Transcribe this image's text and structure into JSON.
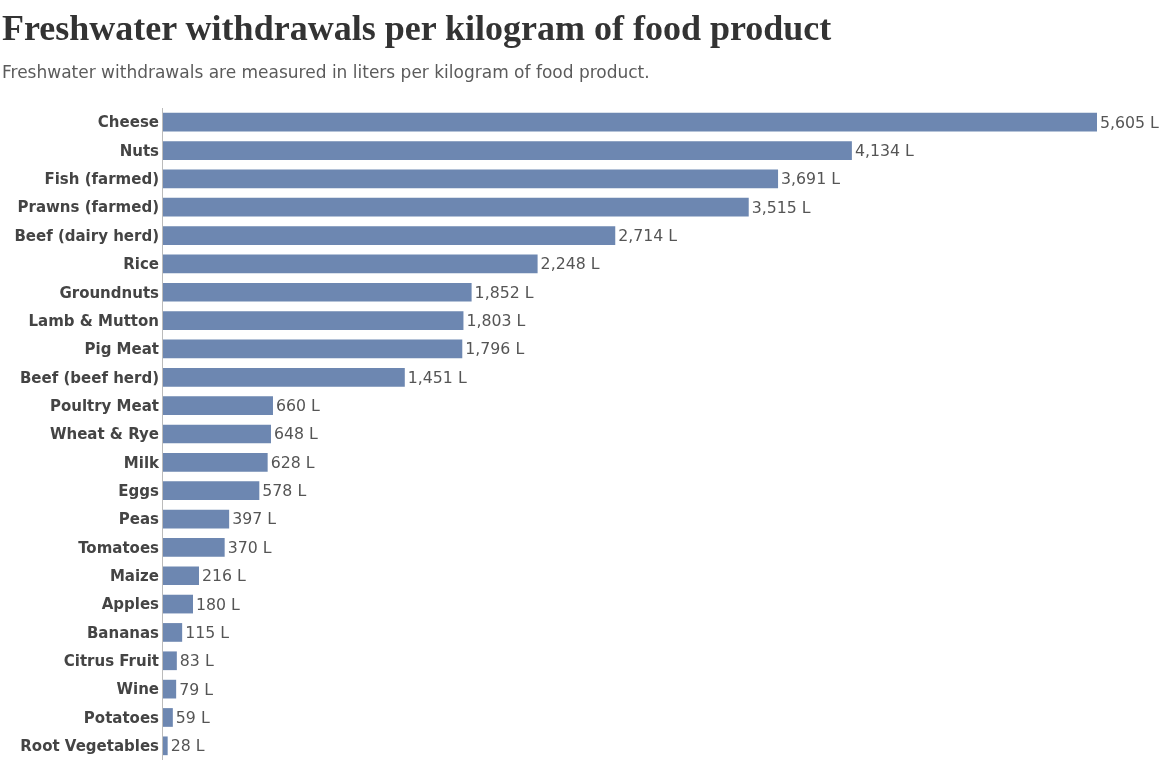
{
  "chart_data": {
    "type": "bar",
    "orientation": "horizontal",
    "title": "Freshwater withdrawals per kilogram of food product",
    "subtitle": "Freshwater withdrawals are measured in liters per kilogram of food product.",
    "categories": [
      "Cheese",
      "Nuts",
      "Fish (farmed)",
      "Prawns (farmed)",
      "Beef (dairy herd)",
      "Rice",
      "Groundnuts",
      "Lamb & Mutton",
      "Pig Meat",
      "Beef (beef herd)",
      "Poultry Meat",
      "Wheat & Rye",
      "Milk",
      "Eggs",
      "Peas",
      "Tomatoes",
      "Maize",
      "Apples",
      "Bananas",
      "Citrus Fruit",
      "Wine",
      "Potatoes",
      "Root Vegetables"
    ],
    "values": [
      5605,
      4134,
      3691,
      3515,
      2714,
      2248,
      1852,
      1803,
      1796,
      1451,
      660,
      648,
      628,
      578,
      397,
      370,
      216,
      180,
      115,
      83,
      79,
      59,
      28
    ],
    "value_labels": [
      "5,605 L",
      "4,134 L",
      "3,691 L",
      "3,515 L",
      "2,714 L",
      "2,248 L",
      "1,852 L",
      "1,803 L",
      "1,796 L",
      "1,451 L",
      "660 L",
      "648 L",
      "628 L",
      "578 L",
      "397 L",
      "370 L",
      "216 L",
      "180 L",
      "115 L",
      "83 L",
      "79 L",
      "59 L",
      "28 L"
    ],
    "color": "#6d87b1",
    "tick_labels": "y"
  }
}
